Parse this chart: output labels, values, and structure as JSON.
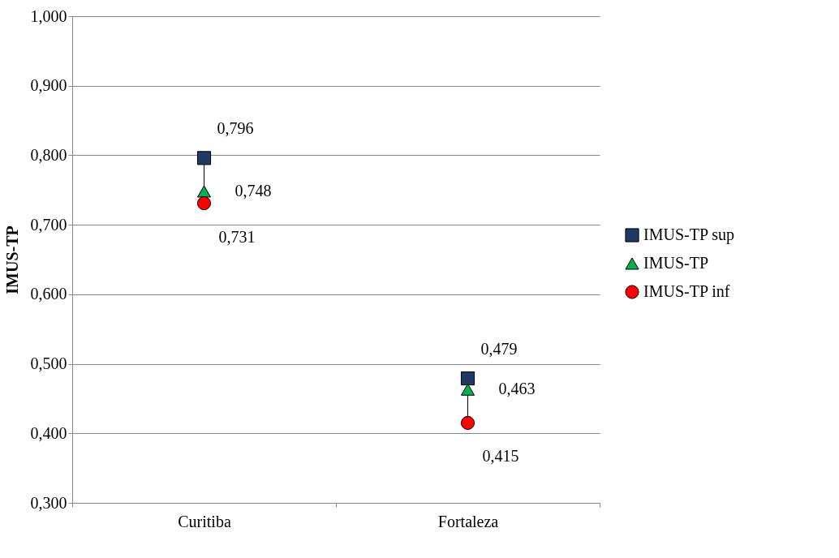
{
  "chart_data": {
    "type": "scatter",
    "ylabel": "IMUS-TP",
    "categories": [
      "Curitiba",
      "Fortaleza"
    ],
    "ylim": [
      0.3,
      1.0
    ],
    "yticks": [
      {
        "value": 0.3,
        "label": "0,300"
      },
      {
        "value": 0.4,
        "label": "0,400"
      },
      {
        "value": 0.5,
        "label": "0,500"
      },
      {
        "value": 0.6,
        "label": "0,600"
      },
      {
        "value": 0.7,
        "label": "0,700"
      },
      {
        "value": 0.8,
        "label": "0,800"
      },
      {
        "value": 0.9,
        "label": "0,900"
      },
      {
        "value": 1.0,
        "label": "1,000"
      }
    ],
    "grid": "y",
    "legend": "right",
    "series": [
      {
        "name": "IMUS-TP sup",
        "color": "#1f3864",
        "marker": "square",
        "values": [
          0.796,
          0.479
        ],
        "value_labels": [
          "0,796",
          "0,479"
        ]
      },
      {
        "name": "IMUS-TP",
        "color": "#00b050",
        "marker": "triangle",
        "values": [
          0.748,
          0.463
        ],
        "value_labels": [
          "0,748",
          "0,463"
        ]
      },
      {
        "name": "IMUS-TP inf",
        "color": "#ff0000",
        "marker": "circle",
        "values": [
          0.731,
          0.415
        ],
        "value_labels": [
          "0,731",
          "0,415"
        ]
      }
    ]
  }
}
